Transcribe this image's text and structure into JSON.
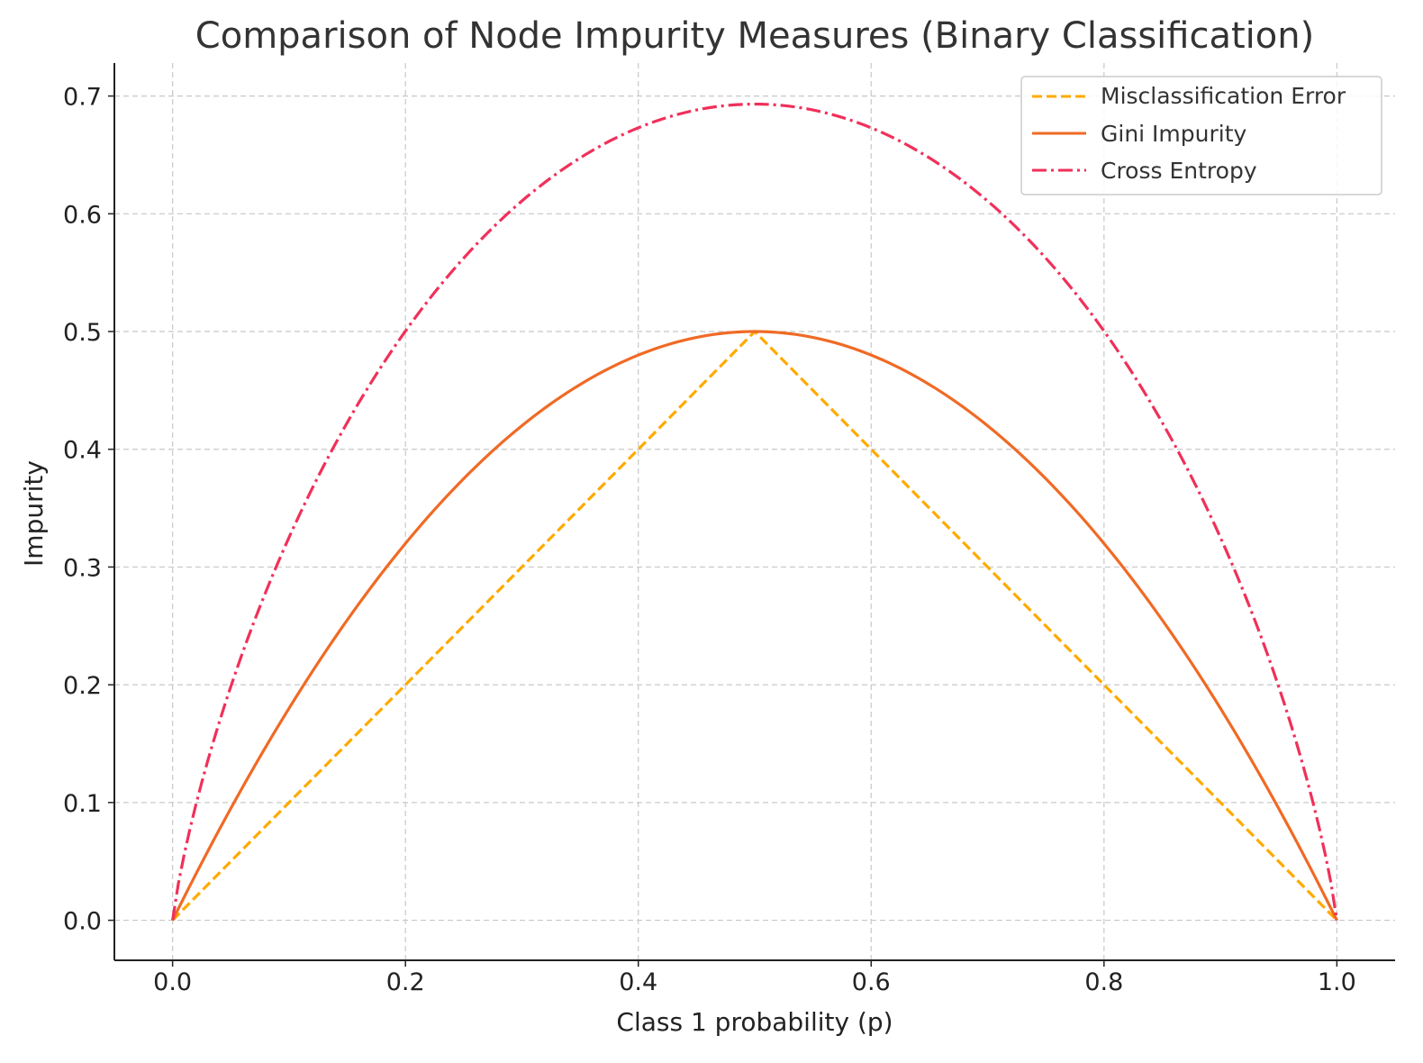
{
  "chart_data": {
    "type": "line",
    "title": "Comparison of Node Impurity Measures (Binary Classification)",
    "xlabel": "Class 1 probability (p)",
    "ylabel": "Impurity",
    "xlim": [
      -0.05,
      1.05
    ],
    "ylim": [
      -0.034,
      0.728
    ],
    "xticks": [
      0.0,
      0.2,
      0.4,
      0.6,
      0.8,
      1.0
    ],
    "xtick_labels": [
      "0.0",
      "0.2",
      "0.4",
      "0.6",
      "0.8",
      "1.0"
    ],
    "yticks": [
      0.0,
      0.1,
      0.2,
      0.3,
      0.4,
      0.5,
      0.6,
      0.7
    ],
    "ytick_labels": [
      "0.0",
      "0.1",
      "0.2",
      "0.3",
      "0.4",
      "0.5",
      "0.6",
      "0.7"
    ],
    "grid": true,
    "legend_position": "top-right",
    "x": [
      0.0,
      0.05,
      0.1,
      0.15,
      0.2,
      0.25,
      0.3,
      0.35,
      0.4,
      0.45,
      0.5,
      0.55,
      0.6,
      0.65,
      0.7,
      0.75,
      0.8,
      0.85,
      0.9,
      0.95,
      1.0
    ],
    "series": [
      {
        "name": "Misclassification Error",
        "color": "#FFAA00",
        "style": "dashed",
        "values": [
          0.0,
          0.05,
          0.1,
          0.15,
          0.2,
          0.25,
          0.3,
          0.35,
          0.4,
          0.45,
          0.5,
          0.45,
          0.4,
          0.35,
          0.3,
          0.25,
          0.2,
          0.15,
          0.1,
          0.05,
          0.0
        ]
      },
      {
        "name": "Gini Impurity",
        "color": "#F06A25",
        "style": "solid",
        "values": [
          0.0,
          0.095,
          0.18,
          0.255,
          0.32,
          0.375,
          0.42,
          0.455,
          0.48,
          0.495,
          0.5,
          0.495,
          0.48,
          0.455,
          0.42,
          0.375,
          0.32,
          0.255,
          0.18,
          0.095,
          0.0
        ]
      },
      {
        "name": "Cross Entropy",
        "color": "#F0305A",
        "style": "dashdot",
        "values": [
          0.0,
          0.199,
          0.325,
          0.423,
          0.5,
          0.562,
          0.611,
          0.647,
          0.673,
          0.688,
          0.693,
          0.688,
          0.673,
          0.647,
          0.611,
          0.562,
          0.5,
          0.423,
          0.325,
          0.199,
          0.0
        ]
      }
    ]
  }
}
